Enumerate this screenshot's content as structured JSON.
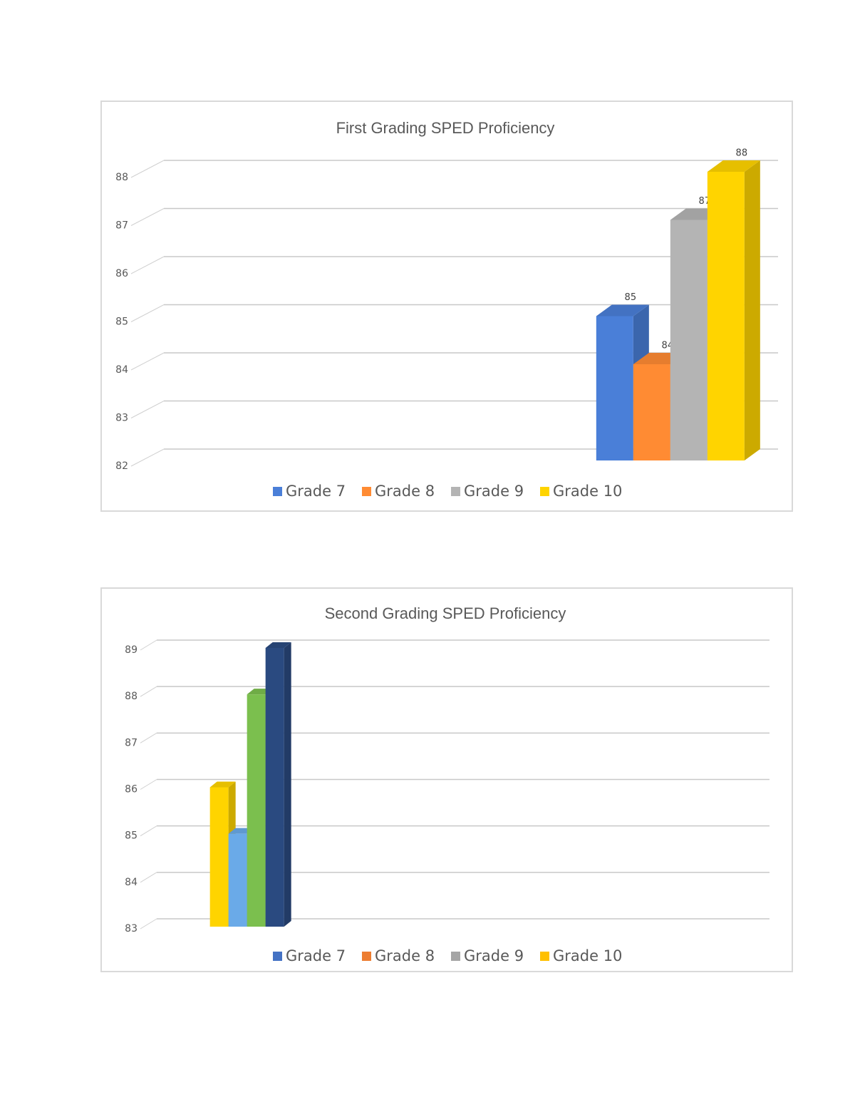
{
  "chart_data": [
    {
      "type": "bar3d",
      "title": "First Grading SPED Proficiency",
      "categories": [
        null,
        null,
        null
      ],
      "series": [
        {
          "name": "Grade 7",
          "color": "#4a7fd8",
          "values": [
            null,
            null,
            85
          ]
        },
        {
          "name": "Grade 8",
          "color": "#ff8b33",
          "values": [
            null,
            null,
            84
          ]
        },
        {
          "name": "Grade 9",
          "color": "#b4b4b4",
          "values": [
            null,
            null,
            87
          ]
        },
        {
          "name": "Grade 10",
          "color": "#ffd400",
          "values": [
            null,
            null,
            88
          ]
        }
      ],
      "ylim": [
        82,
        88
      ],
      "yticks": [
        82,
        83,
        84,
        85,
        86,
        87,
        88
      ],
      "grid": true,
      "data_labels": true,
      "legend": "bottom"
    },
    {
      "type": "bar3d",
      "title": "Second Grading SPED Proficiency",
      "categories": [
        null,
        null,
        null
      ],
      "series": [
        {
          "name": "Grade 7",
          "color": "#ffd400",
          "legend_color": "#4472c4",
          "values": [
            86,
            null,
            null
          ]
        },
        {
          "name": "Grade 8",
          "color": "#6aaae8",
          "legend_color": "#ed7d31",
          "values": [
            85,
            null,
            null
          ]
        },
        {
          "name": "Grade 9",
          "color": "#7bbf4e",
          "legend_color": "#a5a5a5",
          "values": [
            88,
            null,
            null
          ]
        },
        {
          "name": "Grade 10",
          "color": "#2a4a80",
          "legend_color": "#ffc000",
          "values": [
            89,
            null,
            null
          ]
        }
      ],
      "ylim": [
        83,
        89
      ],
      "yticks": [
        83,
        84,
        85,
        86,
        87,
        88,
        89
      ],
      "grid": true,
      "data_labels": false,
      "legend": "bottom"
    }
  ]
}
